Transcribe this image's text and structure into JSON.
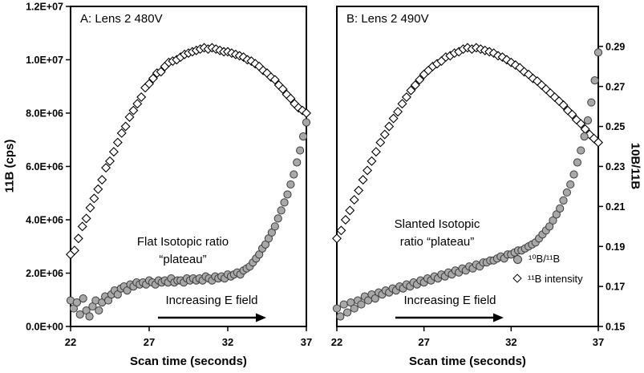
{
  "figure": {
    "x_axis": {
      "title": "Scan time (seconds)",
      "range": [
        22,
        37
      ],
      "ticks": [
        22,
        27,
        32,
        37
      ]
    },
    "left_axis": {
      "title": "11B (cps)",
      "range": [
        0,
        12000000
      ],
      "tick_values": [
        0,
        2000000,
        4000000,
        6000000,
        8000000,
        10000000,
        12000000
      ],
      "tick_labels": [
        "0.0E+00",
        "2.0E+06",
        "4.0E+06",
        "6.0E+06",
        "8.0E+06",
        "1.0E+07",
        "1.2E+07"
      ]
    },
    "right_axis": {
      "title": "10B/11B",
      "range": [
        0.15,
        0.31
      ],
      "tick_values": [
        0.15,
        0.17,
        0.19,
        0.21,
        0.23,
        0.25,
        0.27,
        0.29
      ],
      "tick_labels": [
        "0.15",
        "0.17",
        "0.19",
        "0.21",
        "0.23",
        "0.25",
        "0.27",
        "0.29"
      ]
    },
    "colors": {
      "circle_fill": "#a8a8a8",
      "circle_stroke": "#3d3d3d",
      "diamond_fill": "#ffffff",
      "diamond_stroke": "#000000",
      "axis": "#000000"
    }
  },
  "chart_data": [
    {
      "type": "scatter",
      "panel_label": "A: Lens 2 480V",
      "annotation_lines": [
        "Flat Isotopic ratio",
        "“plateau”"
      ],
      "efield_label": "Increasing E field",
      "series": [
        {
          "name": "¹¹B intensity",
          "marker": "diamond",
          "axis": "left",
          "x_start": 22,
          "x_step": 0.25,
          "value_scale": 1000000,
          "values": [
            2.7,
            2.85,
            3.3,
            3.75,
            4.05,
            4.45,
            4.8,
            5.15,
            5.5,
            5.95,
            6.2,
            6.55,
            6.9,
            7.25,
            7.5,
            7.85,
            8.1,
            8.35,
            8.6,
            8.95,
            9.1,
            9.3,
            9.5,
            9.55,
            9.75,
            9.9,
            9.95,
            10.0,
            10.1,
            10.2,
            10.25,
            10.3,
            10.35,
            10.4,
            10.45,
            10.4,
            10.45,
            10.4,
            10.35,
            10.3,
            10.3,
            10.25,
            10.2,
            10.15,
            10.1,
            10.0,
            9.95,
            9.85,
            9.75,
            9.6,
            9.5,
            9.35,
            9.25,
            9.05,
            8.9,
            8.7,
            8.55,
            8.35,
            8.2,
            8.1,
            8.0
          ]
        },
        {
          "name": "¹⁰B/¹¹B",
          "marker": "circle",
          "axis": "right",
          "x_start": 22,
          "x_step": 0.2,
          "value_scale": 1,
          "values": [
            0.163,
            0.159,
            0.162,
            0.156,
            0.164,
            0.158,
            0.155,
            0.16,
            0.163,
            0.158,
            0.162,
            0.165,
            0.163,
            0.166,
            0.168,
            0.166,
            0.169,
            0.17,
            0.168,
            0.171,
            0.17,
            0.172,
            0.171,
            0.172,
            0.171,
            0.173,
            0.172,
            0.171,
            0.173,
            0.172,
            0.173,
            0.172,
            0.174,
            0.172,
            0.173,
            0.173,
            0.172,
            0.174,
            0.173,
            0.174,
            0.173,
            0.174,
            0.173,
            0.175,
            0.174,
            0.173,
            0.175,
            0.174,
            0.175,
            0.174,
            0.176,
            0.175,
            0.176,
            0.177,
            0.176,
            0.178,
            0.179,
            0.18,
            0.182,
            0.184,
            0.186,
            0.189,
            0.191,
            0.194,
            0.197,
            0.2,
            0.204,
            0.208,
            0.212,
            0.216,
            0.221,
            0.226,
            0.232,
            0.238,
            0.245,
            0.252
          ]
        }
      ]
    },
    {
      "type": "scatter",
      "panel_label": "B: Lens 2 490V",
      "annotation_lines": [
        "Slanted Isotopic",
        "ratio “plateau”"
      ],
      "efield_label": "Increasing E field",
      "legend": [
        {
          "label": "¹⁰B/¹¹B",
          "marker": "circle"
        },
        {
          "label": "¹¹B intensity",
          "marker": "diamond"
        }
      ],
      "series": [
        {
          "name": "¹¹B intensity",
          "marker": "diamond",
          "axis": "left",
          "x_start": 22,
          "x_step": 0.25,
          "value_scale": 1000000,
          "values": [
            3.3,
            3.6,
            4.0,
            4.35,
            4.75,
            5.1,
            5.5,
            5.85,
            6.2,
            6.55,
            6.9,
            7.2,
            7.5,
            7.8,
            8.05,
            8.35,
            8.6,
            8.85,
            9.05,
            9.25,
            9.45,
            9.6,
            9.75,
            9.85,
            9.95,
            10.1,
            10.15,
            10.25,
            10.3,
            10.4,
            10.45,
            10.4,
            10.45,
            10.4,
            10.35,
            10.3,
            10.25,
            10.15,
            10.1,
            10.0,
            9.9,
            9.8,
            9.7,
            9.55,
            9.45,
            9.3,
            9.2,
            9.05,
            8.9,
            8.75,
            8.6,
            8.45,
            8.3,
            8.1,
            7.95,
            7.75,
            7.6,
            7.4,
            7.2,
            7.05,
            6.9
          ]
        },
        {
          "name": "¹⁰B/¹¹B",
          "marker": "circle",
          "axis": "right",
          "x_start": 22,
          "x_step": 0.2,
          "value_scale": 1,
          "values": [
            0.159,
            0.155,
            0.161,
            0.157,
            0.162,
            0.159,
            0.163,
            0.161,
            0.165,
            0.163,
            0.166,
            0.164,
            0.167,
            0.166,
            0.168,
            0.167,
            0.169,
            0.168,
            0.17,
            0.169,
            0.171,
            0.17,
            0.172,
            0.171,
            0.173,
            0.172,
            0.174,
            0.173,
            0.175,
            0.174,
            0.176,
            0.175,
            0.177,
            0.176,
            0.178,
            0.177,
            0.179,
            0.178,
            0.18,
            0.179,
            0.181,
            0.18,
            0.182,
            0.182,
            0.183,
            0.183,
            0.184,
            0.185,
            0.184,
            0.186,
            0.186,
            0.187,
            0.188,
            0.188,
            0.189,
            0.19,
            0.191,
            0.192,
            0.194,
            0.196,
            0.198,
            0.2,
            0.203,
            0.206,
            0.209,
            0.213,
            0.217,
            0.221,
            0.226,
            0.232,
            0.238,
            0.245,
            0.253,
            0.262,
            0.273,
            0.287
          ]
        }
      ]
    }
  ]
}
